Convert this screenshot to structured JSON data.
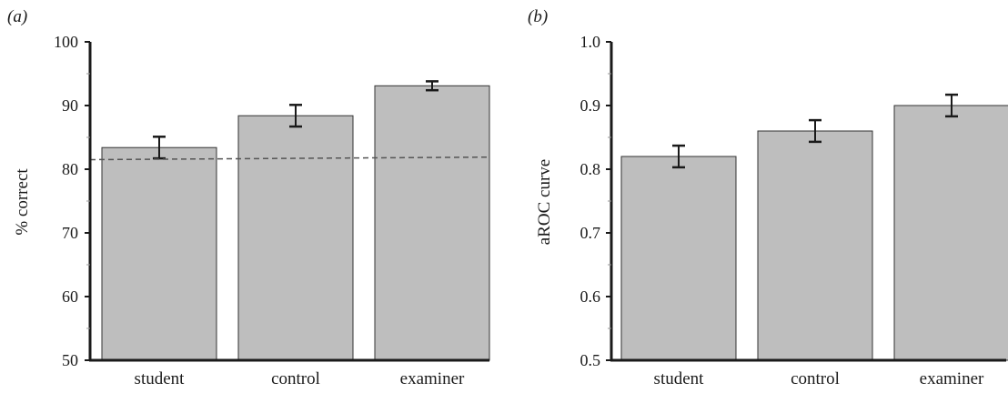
{
  "chart_data": [
    {
      "type": "bar",
      "panel_label": "(a)",
      "categories": [
        "student",
        "control",
        "examiner"
      ],
      "values": [
        83.4,
        88.4,
        93.1
      ],
      "errors": [
        1.7,
        1.7,
        0.7
      ],
      "ylabel": "% correct",
      "ylim": [
        50,
        100
      ],
      "yticks": [
        "50",
        "60",
        "70",
        "80",
        "90",
        "100"
      ],
      "reference_line": {
        "y_start": 81.5,
        "y_end": 81.9,
        "style": "dashed"
      },
      "bar_color": "#bebebe",
      "grid": false
    },
    {
      "type": "bar",
      "panel_label": "(b)",
      "categories": [
        "student",
        "control",
        "examiner"
      ],
      "values": [
        0.82,
        0.86,
        0.9
      ],
      "errors": [
        0.017,
        0.017,
        0.017
      ],
      "ylabel": "aROC curve",
      "ylim": [
        0.5,
        1.0
      ],
      "yticks": [
        "0.5",
        "0.6",
        "0.7",
        "0.8",
        "0.9",
        "1.0"
      ],
      "bar_color": "#bebebe",
      "grid": false
    }
  ]
}
